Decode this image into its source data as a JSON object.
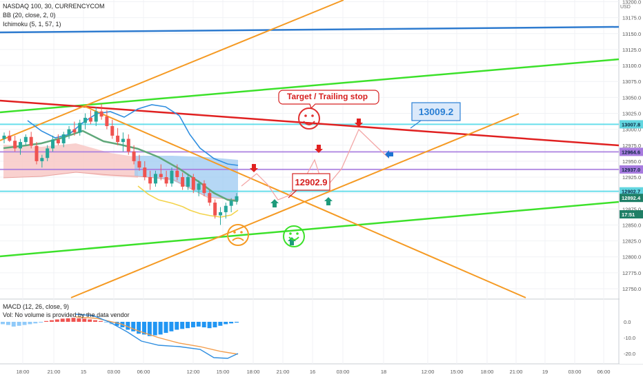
{
  "header": {
    "symbol_line": "NASDAQ 100, 30, CURRENCYCOM",
    "bb_line": "BB (20, close, 2, 0)",
    "ichimoku_line": "Ichimoku (5, 1, 57, 1)",
    "macd_line": "MACD (12, 26, close, 9)",
    "vol_line": "Vol: No volume is provided by the data vendor"
  },
  "chart_data": [
    {
      "type": "candlestick",
      "panel": "price",
      "currency_label": "USD",
      "ylim": [
        12740,
        13200
      ],
      "y_ticks": [
        12750,
        12775,
        12800,
        12825,
        12850,
        12875,
        12900,
        12925,
        12950,
        12975,
        13000,
        13025,
        13050,
        13075,
        13100,
        13125,
        13150,
        13175,
        13200
      ],
      "y_tick_labels": [
        "12750.0",
        "12775.0",
        "12800.0",
        "12825.0",
        "12850.0",
        "12875.0",
        "12900.0",
        "12925.0",
        "12950.0",
        "12975.0",
        "13000.0",
        "13025.0",
        "13050.0",
        "13075.0",
        "13100.0",
        "13125.0",
        "13150.0",
        "13175.0",
        "13200.0"
      ],
      "x_labels": [
        "18:00",
        "21:00",
        "15",
        "03:00",
        "06:00",
        "12:00",
        "15:00",
        "18:00",
        "21:00",
        "16",
        "03:00",
        "18",
        "12:00",
        "15:00",
        "18:00",
        "21:00",
        "19",
        "03:00",
        "06:00"
      ],
      "candles": [
        [
          12985,
          12995,
          12978,
          12990
        ],
        [
          12990,
          12998,
          12980,
          12982
        ],
        [
          12982,
          12990,
          12965,
          12970
        ],
        [
          12970,
          12985,
          12960,
          12980
        ],
        [
          12980,
          12992,
          12975,
          12988
        ],
        [
          12988,
          12996,
          12970,
          12974
        ],
        [
          12974,
          12980,
          12945,
          12950
        ],
        [
          12950,
          12960,
          12940,
          12955
        ],
        [
          12955,
          12975,
          12950,
          12970
        ],
        [
          12970,
          12990,
          12965,
          12984
        ],
        [
          12984,
          12992,
          12975,
          12978
        ],
        [
          12978,
          12996,
          12972,
          12992
        ],
        [
          12992,
          13005,
          12985,
          13000
        ],
        [
          13000,
          13012,
          12990,
          12995
        ],
        [
          12995,
          13015,
          12990,
          13010
        ],
        [
          13010,
          13025,
          13000,
          13018
        ],
        [
          13018,
          13030,
          13008,
          13012
        ],
        [
          13012,
          13035,
          13005,
          13028
        ],
        [
          13028,
          13040,
          13015,
          13020
        ],
        [
          13020,
          13030,
          13000,
          13005
        ],
        [
          13005,
          13015,
          12985,
          12990
        ],
        [
          12990,
          13002,
          12975,
          12980
        ],
        [
          12980,
          12995,
          12965,
          12985
        ],
        [
          12985,
          12992,
          12960,
          12965
        ],
        [
          12965,
          12975,
          12945,
          12950
        ],
        [
          12950,
          12960,
          12935,
          12940
        ],
        [
          12940,
          12950,
          12920,
          12925
        ],
        [
          12925,
          12935,
          12905,
          12915
        ],
        [
          12915,
          12935,
          12910,
          12930
        ],
        [
          12930,
          12945,
          12920,
          12925
        ],
        [
          12925,
          12935,
          12910,
          12915
        ],
        [
          12915,
          12940,
          12910,
          12935
        ],
        [
          12935,
          12945,
          12920,
          12925
        ],
        [
          12925,
          12932,
          12905,
          12910
        ],
        [
          12910,
          12930,
          12905,
          12925
        ],
        [
          12925,
          12930,
          12900,
          12905
        ],
        [
          12905,
          12920,
          12895,
          12915
        ],
        [
          12915,
          12920,
          12895,
          12900
        ],
        [
          12900,
          12905,
          12880,
          12885
        ],
        [
          12885,
          12890,
          12860,
          12865
        ],
        [
          12865,
          12878,
          12850,
          12870
        ],
        [
          12870,
          12885,
          12860,
          12880
        ],
        [
          12880,
          12892,
          12870,
          12888
        ],
        [
          12888,
          12900,
          12882,
          12895
        ]
      ],
      "horizontal_levels": [
        {
          "value": 13007.8,
          "label": "13007.8",
          "color": "#4dd9e8"
        },
        {
          "value": 12964.6,
          "label": "12964.6",
          "color": "#a77bdf"
        },
        {
          "value": 12937.0,
          "label": "12937.0",
          "color": "#a77bdf"
        },
        {
          "value": 12902.7,
          "label": "12902.7",
          "color": "#4dd9e8"
        },
        {
          "value": 12892.4,
          "label": "12892.4",
          "color": "#1d8a6a"
        }
      ],
      "countdown_label": "17:51",
      "callouts": [
        {
          "text": "Target / Trailing stop",
          "color": "#d62020"
        },
        {
          "text": "13009.2",
          "color": "#2a7fd4"
        },
        {
          "text": "12902.9",
          "color": "#d62020"
        }
      ]
    },
    {
      "type": "bar",
      "panel": "macd",
      "ylim": [
        -25,
        5
      ],
      "y_ticks": [
        0,
        -10,
        -20
      ],
      "y_tick_labels": [
        "0.0",
        "-10.0",
        "-20.0"
      ],
      "histogram": [
        -1.5,
        -2,
        -3,
        -2.5,
        -2,
        -1.5,
        -1,
        -0.5,
        0.5,
        1,
        1.5,
        2,
        2.2,
        2.5,
        2.2,
        2,
        1.5,
        1,
        0.5,
        -0.5,
        -1.5,
        -2.5,
        -3.5,
        -5,
        -6,
        -7.5,
        -8,
        -9,
        -8.5,
        -8,
        -7,
        -6,
        -5,
        -4.5,
        -4,
        -3.5,
        -3,
        -3.5,
        -4,
        -3.5,
        -2.5,
        -1.5,
        -1,
        -0.5
      ]
    }
  ],
  "colors": {
    "bull": "#26a69a",
    "bear": "#ef5350",
    "cloud": "#9cc9f2",
    "bb_mid": "#60a87a",
    "orange": "#f59a23",
    "green": "#3ce12a",
    "red_trend": "#e02020",
    "blue_top": "#2e7bcf"
  }
}
